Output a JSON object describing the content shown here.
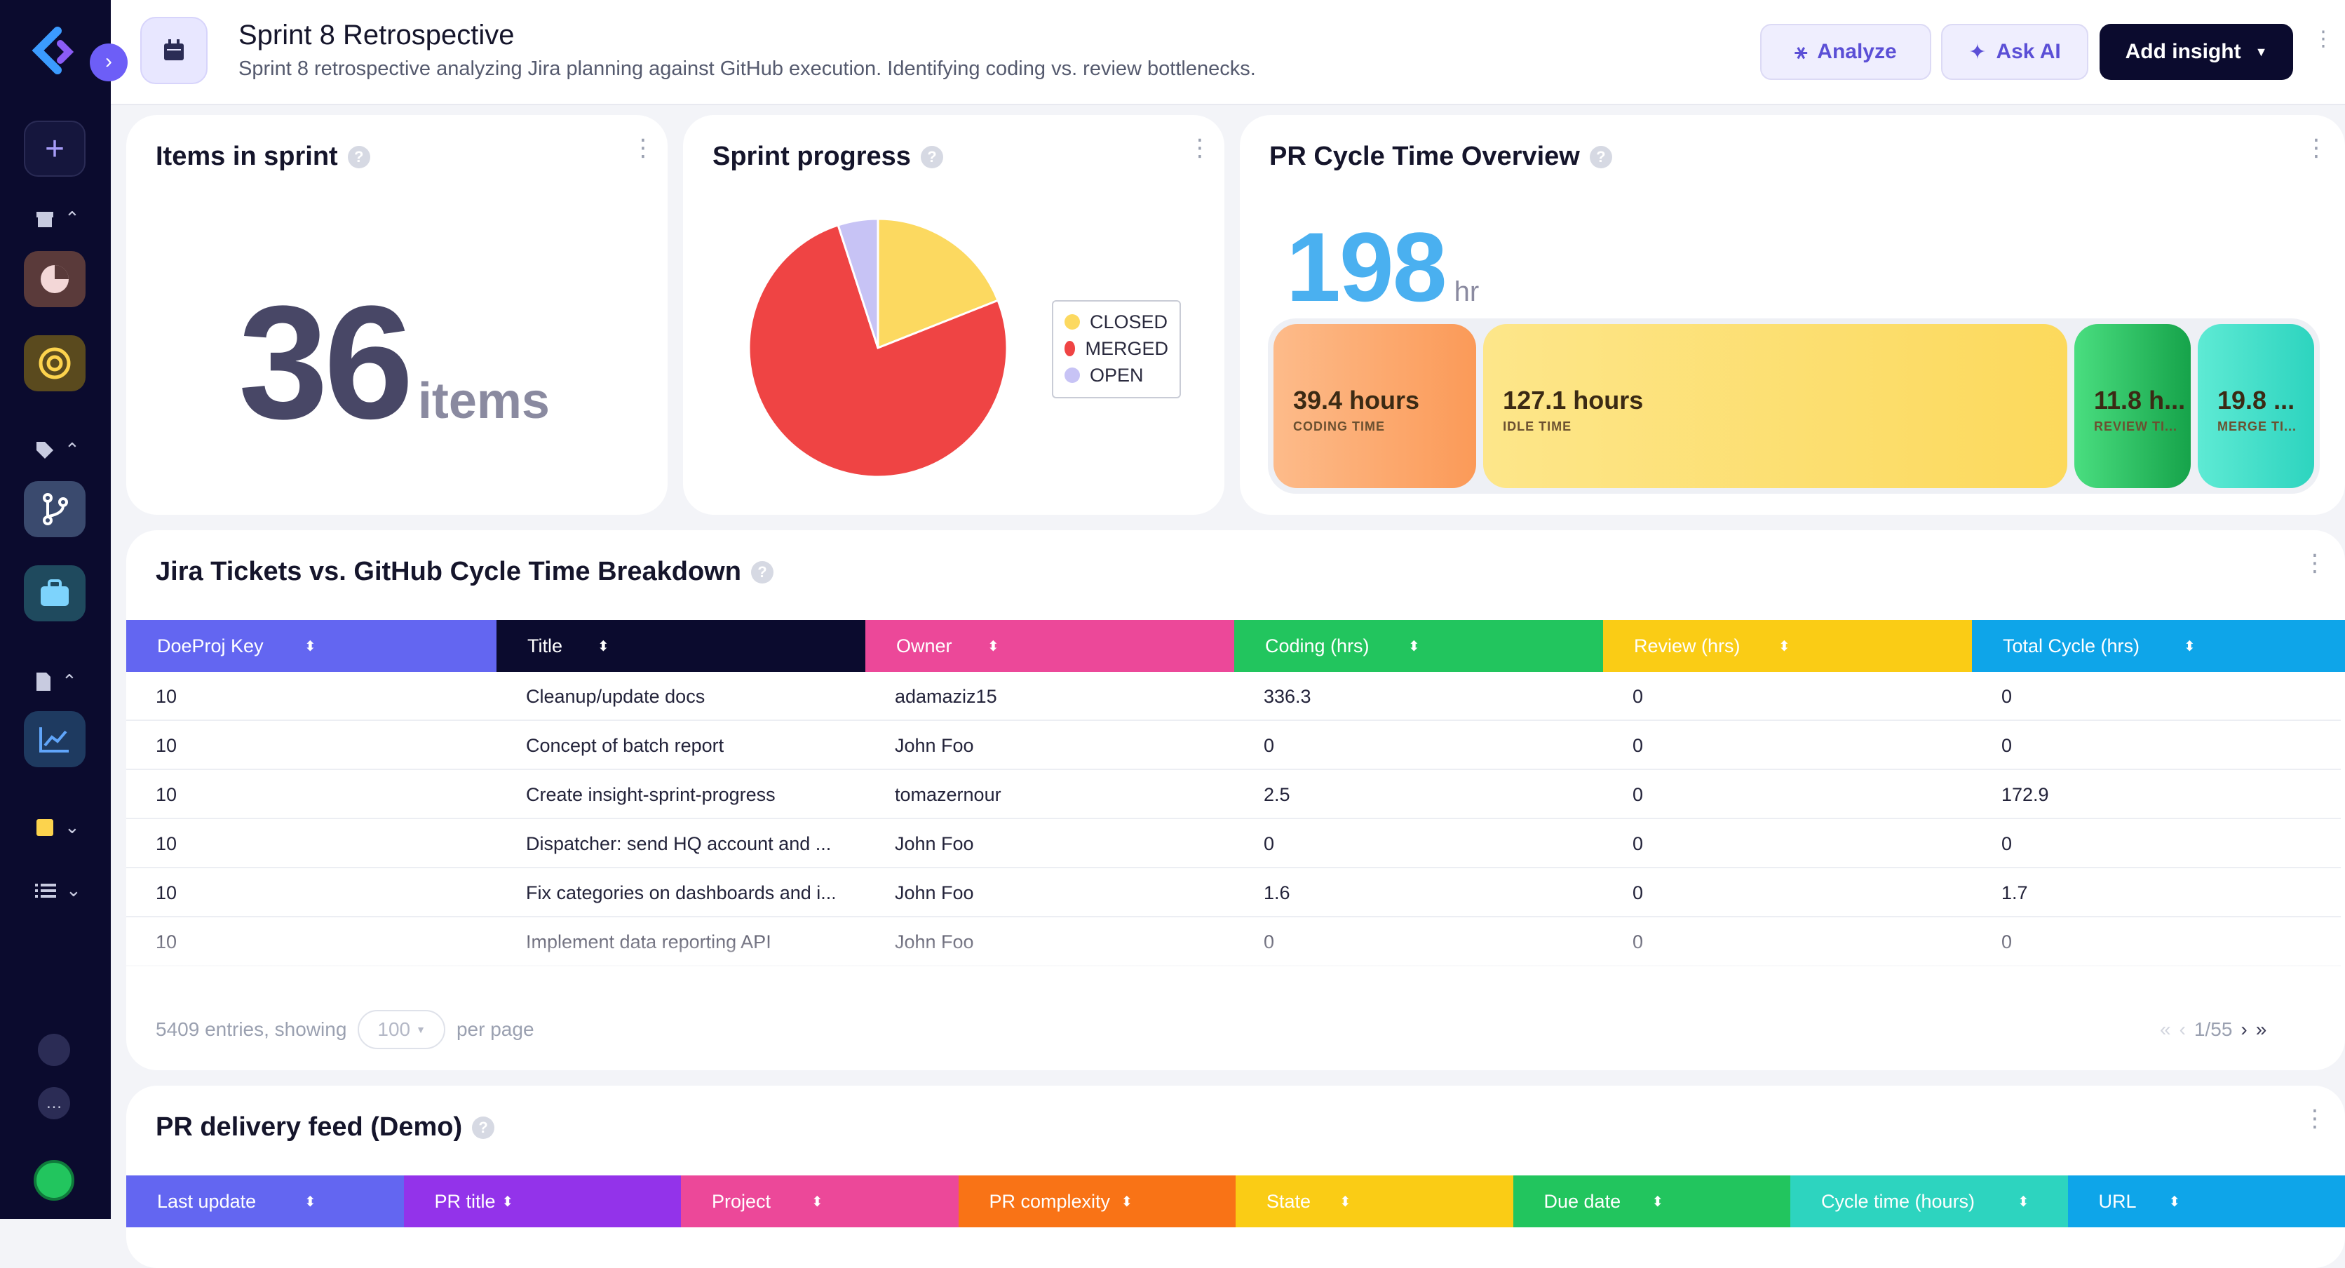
{
  "header": {
    "title": "Sprint 8 Retrospective",
    "subtitle": "Sprint 8 retrospective analyzing Jira planning against GitHub execution. Identifying coding vs. review bottlenecks.",
    "analyze_label": "Analyze",
    "ask_ai_label": "Ask AI",
    "add_insight_label": "Add insight"
  },
  "items_card": {
    "title": "Items in sprint",
    "value": "36",
    "unit": "items"
  },
  "progress_card": {
    "title": "Sprint progress",
    "chart_data": {
      "type": "pie",
      "slices": [
        {
          "name": "CLOSED",
          "value": 19,
          "color": "#fcd960"
        },
        {
          "name": "MERGED",
          "value": 76,
          "color": "#ef4444"
        },
        {
          "name": "OPEN",
          "value": 5,
          "color": "#c7c3f5"
        }
      ],
      "legend": "right"
    },
    "legend": [
      "CLOSED",
      "MERGED",
      "OPEN"
    ]
  },
  "pr_card": {
    "title": "PR Cycle Time Overview",
    "total_value": "198",
    "total_unit": "hr",
    "segments": [
      {
        "value": "39.4 hours",
        "label": "CODING TIME",
        "hours": 39.4
      },
      {
        "value": "127.1 hours",
        "label": "IDLE TIME",
        "hours": 127.1
      },
      {
        "value": "11.8 h...",
        "label": "REVIEW TI...",
        "hours": 11.8
      },
      {
        "value": "19.8 ...",
        "label": "MERGE TI...",
        "hours": 19.8
      }
    ]
  },
  "jira_table": {
    "title": "Jira Tickets vs. GitHub Cycle Time Breakdown",
    "columns": [
      "DoeProj Key",
      "Title",
      "Owner",
      "Coding (hrs)",
      "Review (hrs)",
      "Total Cycle (hrs)"
    ],
    "column_colors": [
      "#6366f1",
      "#0b0b2e",
      "#ec4899",
      "#22c55e",
      "#facc15",
      "#0ea5e9"
    ],
    "rows": [
      [
        "10",
        "Cleanup/update docs",
        "adamaziz15",
        "336.3",
        "0",
        "0"
      ],
      [
        "10",
        "Concept of batch report",
        "John Foo",
        "0",
        "0",
        "0"
      ],
      [
        "10",
        "Create insight-sprint-progress",
        "tomazernour",
        "2.5",
        "0",
        "172.9"
      ],
      [
        "10",
        "Dispatcher: send HQ account and ...",
        "John Foo",
        "0",
        "0",
        "0"
      ],
      [
        "10",
        "Fix categories on dashboards and i...",
        "John Foo",
        "1.6",
        "0",
        "1.7"
      ],
      [
        "10",
        "Implement data reporting API",
        "John Foo",
        "0",
        "0",
        "0"
      ]
    ],
    "footer": {
      "entries": "5409 entries, showing",
      "per_page_value": "100",
      "per_page_label": "per page",
      "page": "1/55"
    }
  },
  "feed_table": {
    "title": "PR delivery feed (Demo)",
    "columns": [
      "Last update",
      "PR title",
      "Project",
      "PR complexity",
      "State",
      "Due date",
      "Cycle time (hours)",
      "URL"
    ],
    "column_colors": [
      "#6366f1",
      "#9333ea",
      "#ec4899",
      "#f97316",
      "#facc15",
      "#22c55e",
      "#2dd4bf",
      "#0ea5e9"
    ]
  },
  "icons": [
    "collapse-arrow-icon",
    "calendar-icon",
    "plus-icon",
    "archive-icon",
    "pie-icon",
    "target-icon",
    "tag-icon",
    "git-branch-icon",
    "briefcase-icon",
    "file-icon",
    "chart-icon",
    "note-icon",
    "list-icon",
    "layers-icon",
    "chat-icon",
    "avatar"
  ]
}
